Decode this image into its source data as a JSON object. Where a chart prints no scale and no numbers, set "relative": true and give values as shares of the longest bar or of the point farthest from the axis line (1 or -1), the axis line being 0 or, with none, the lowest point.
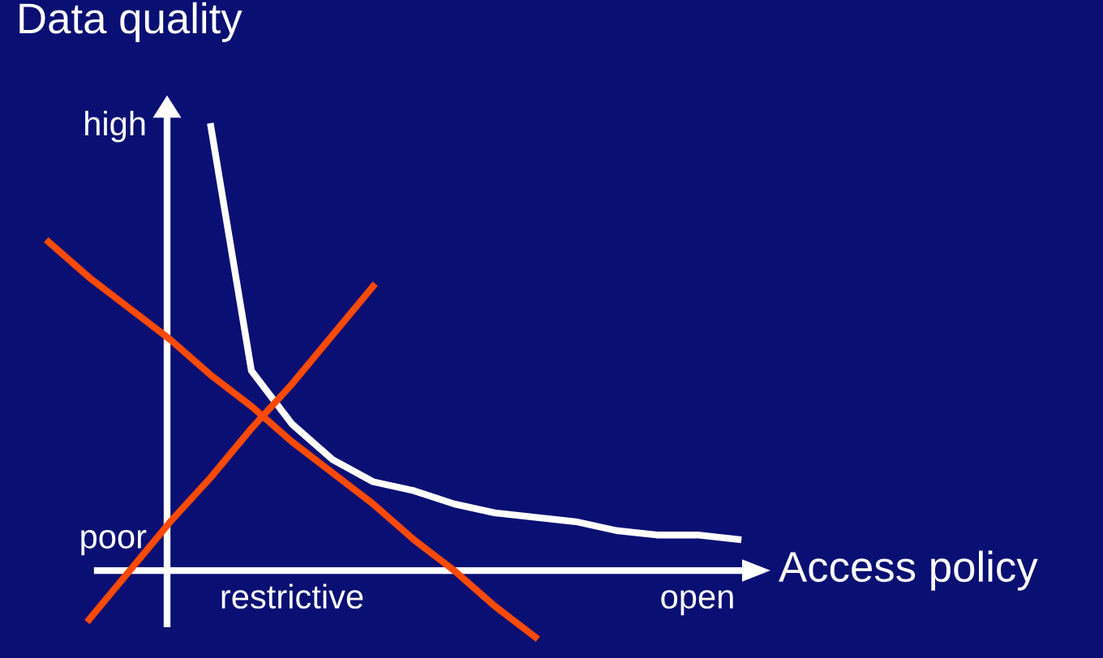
{
  "chart_data": {
    "type": "line",
    "relative": true,
    "xlabel": "Access policy",
    "ylabel": "Data quality",
    "categories": [
      null,
      null,
      null,
      null,
      null,
      null,
      "restrictive",
      null,
      null,
      null,
      null,
      null,
      null,
      null,
      null,
      null,
      "open",
      null
    ],
    "annotations": [
      "high",
      "poor"
    ],
    "series": [
      {
        "color": "#ffffff",
        "values": [
          null,
          null,
          null,
          null,
          1.0,
          0.45,
          0.33,
          0.25,
          0.2,
          0.18,
          0.15,
          0.13,
          0.12,
          0.11,
          0.09,
          0.08,
          0.08,
          0.07
        ]
      },
      {
        "color": "#ff4a00",
        "values": [
          0.74,
          0.66,
          0.59,
          0.52,
          0.44,
          0.37,
          0.29,
          0.22,
          0.15,
          0.07,
          0.0,
          -0.08,
          -0.15,
          null,
          null,
          null,
          null,
          null
        ]
      },
      {
        "color": "#ff4a00",
        "values": [
          null,
          -0.11,
          0.0,
          0.11,
          0.21,
          0.32,
          0.42,
          0.53,
          0.64,
          null,
          null,
          null,
          null,
          null,
          null,
          null,
          null,
          null
        ]
      }
    ],
    "marker": "none",
    "line_style": "solid",
    "legend": false
  }
}
